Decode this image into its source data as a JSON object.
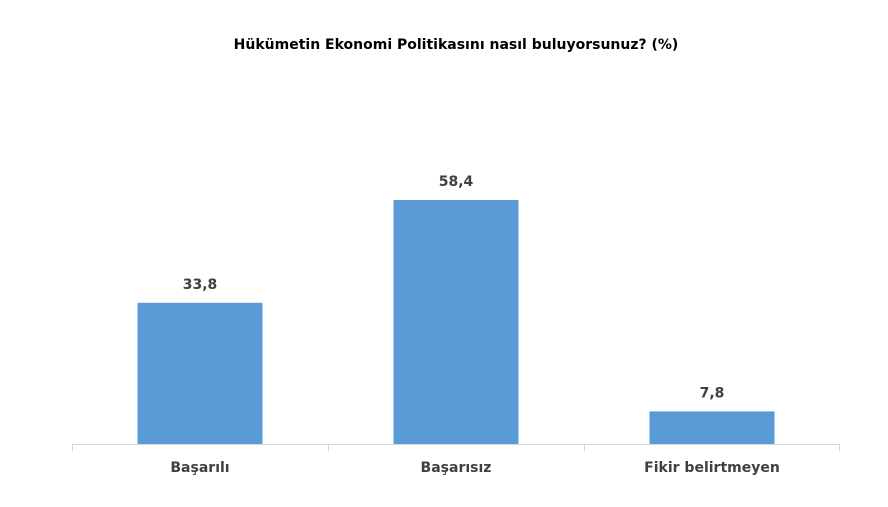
{
  "chart_data": {
    "type": "bar",
    "title": "Hükümetin Ekonomi Politikasını nasıl buluyorsunuz? (%)",
    "categories": [
      "Başarılı",
      "Başarısız",
      "Fikir belirtmeyen"
    ],
    "values": [
      33.8,
      58.4,
      7.8
    ],
    "value_labels": [
      "33,8",
      "58,4",
      "7,8"
    ],
    "color": "#5b9bd5"
  }
}
